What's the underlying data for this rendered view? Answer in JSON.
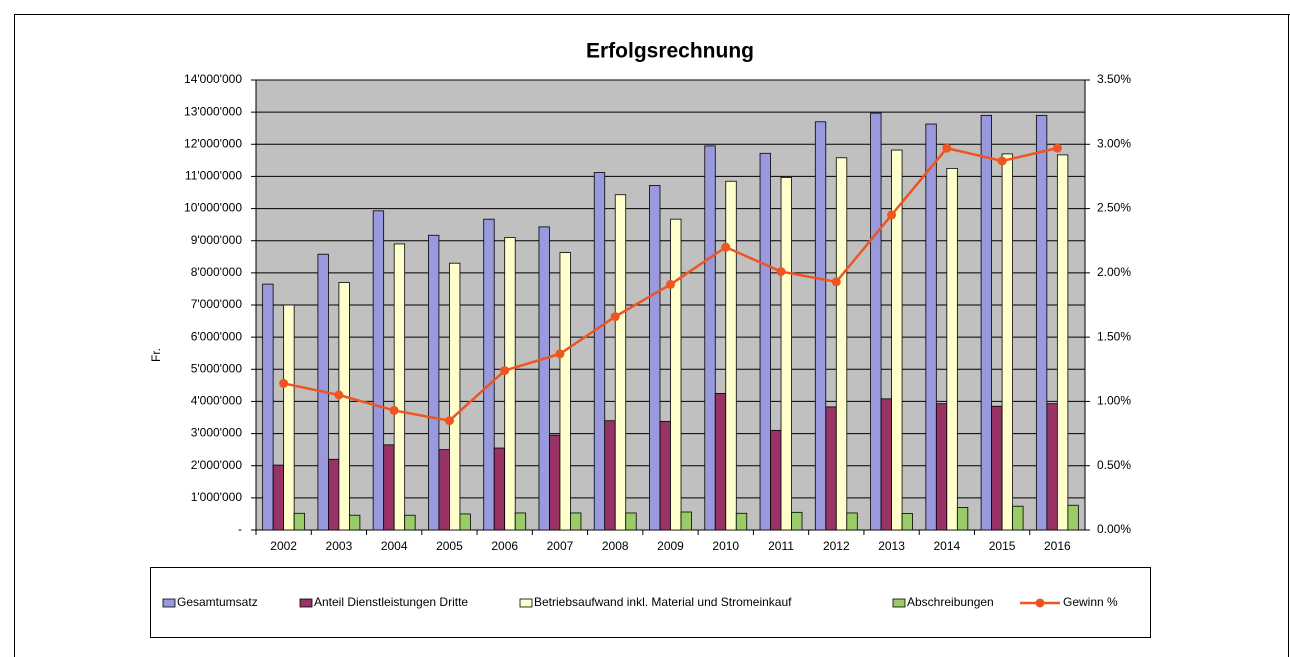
{
  "chart_data": {
    "type": "bar",
    "title": "Erfolgsrechnung",
    "y_label": "Fr.",
    "categories": [
      "2002",
      "2003",
      "2004",
      "2005",
      "2006",
      "2007",
      "2008",
      "2009",
      "2010",
      "2011",
      "2012",
      "2013",
      "2014",
      "2015",
      "2016"
    ],
    "series": [
      {
        "name": "Gesamtumsatz",
        "color": "#9999dd",
        "values": [
          7650000,
          8580000,
          9930000,
          9170000,
          9670000,
          9430000,
          11120000,
          10720000,
          11950000,
          11720000,
          12700000,
          12970000,
          12630000,
          12900000,
          12900000
        ]
      },
      {
        "name": "Anteil Dienstleistungen Dritte",
        "color": "#993366",
        "values": [
          2020000,
          2200000,
          2650000,
          2500000,
          2550000,
          2950000,
          3400000,
          3380000,
          4250000,
          3100000,
          3830000,
          4080000,
          3930000,
          3850000,
          3930000
        ]
      },
      {
        "name": "Betriebsaufwand inkl. Material und Stromeinkauf",
        "color": "#ffffcc",
        "values": [
          7000000,
          7700000,
          8900000,
          8300000,
          9100000,
          8630000,
          10430000,
          9670000,
          10850000,
          10970000,
          11580000,
          11820000,
          11250000,
          11700000,
          11670000
        ]
      },
      {
        "name": "Abschreibungen",
        "color": "#99cc66",
        "values": [
          520000,
          460000,
          460000,
          500000,
          530000,
          530000,
          530000,
          560000,
          520000,
          550000,
          530000,
          510000,
          700000,
          740000,
          770000
        ]
      },
      {
        "name": "Gewinn %",
        "color": "#ee5522",
        "type": "line",
        "axis": "y2",
        "values": [
          1.14,
          1.05,
          0.93,
          0.85,
          1.24,
          1.37,
          1.66,
          1.91,
          2.2,
          2.01,
          1.93,
          2.45,
          2.97,
          2.87,
          2.97
        ]
      }
    ],
    "ylim": [
      0,
      14000000
    ],
    "yticks": [
      {
        "value": 0,
        "label": "-"
      },
      {
        "value": 1000000,
        "label": "1'000'000"
      },
      {
        "value": 2000000,
        "label": "2'000'000"
      },
      {
        "value": 3000000,
        "label": "3'000'000"
      },
      {
        "value": 4000000,
        "label": "4'000'000"
      },
      {
        "value": 5000000,
        "label": "5'000'000"
      },
      {
        "value": 6000000,
        "label": "6'000'000"
      },
      {
        "value": 7000000,
        "label": "7'000'000"
      },
      {
        "value": 8000000,
        "label": "8'000'000"
      },
      {
        "value": 9000000,
        "label": "9'000'000"
      },
      {
        "value": 10000000,
        "label": "10'000'000"
      },
      {
        "value": 11000000,
        "label": "11'000'000"
      },
      {
        "value": 12000000,
        "label": "12'000'000"
      },
      {
        "value": 13000000,
        "label": "13'000'000"
      },
      {
        "value": 14000000,
        "label": "14'000'000"
      }
    ],
    "y2lim": [
      0,
      3.5
    ],
    "y2ticks": [
      {
        "value": 0,
        "label": "0.00%"
      },
      {
        "value": 0.5,
        "label": "0.50%"
      },
      {
        "value": 1,
        "label": "1.00%"
      },
      {
        "value": 1.5,
        "label": "1.50%"
      },
      {
        "value": 2,
        "label": "2.00%"
      },
      {
        "value": 2.5,
        "label": "2.50%"
      },
      {
        "value": 3,
        "label": "3.00%"
      },
      {
        "value": 3.5,
        "label": "3.50%"
      }
    ],
    "grid": true,
    "legend": "bottom",
    "plot_background": "#c0c0c0"
  }
}
